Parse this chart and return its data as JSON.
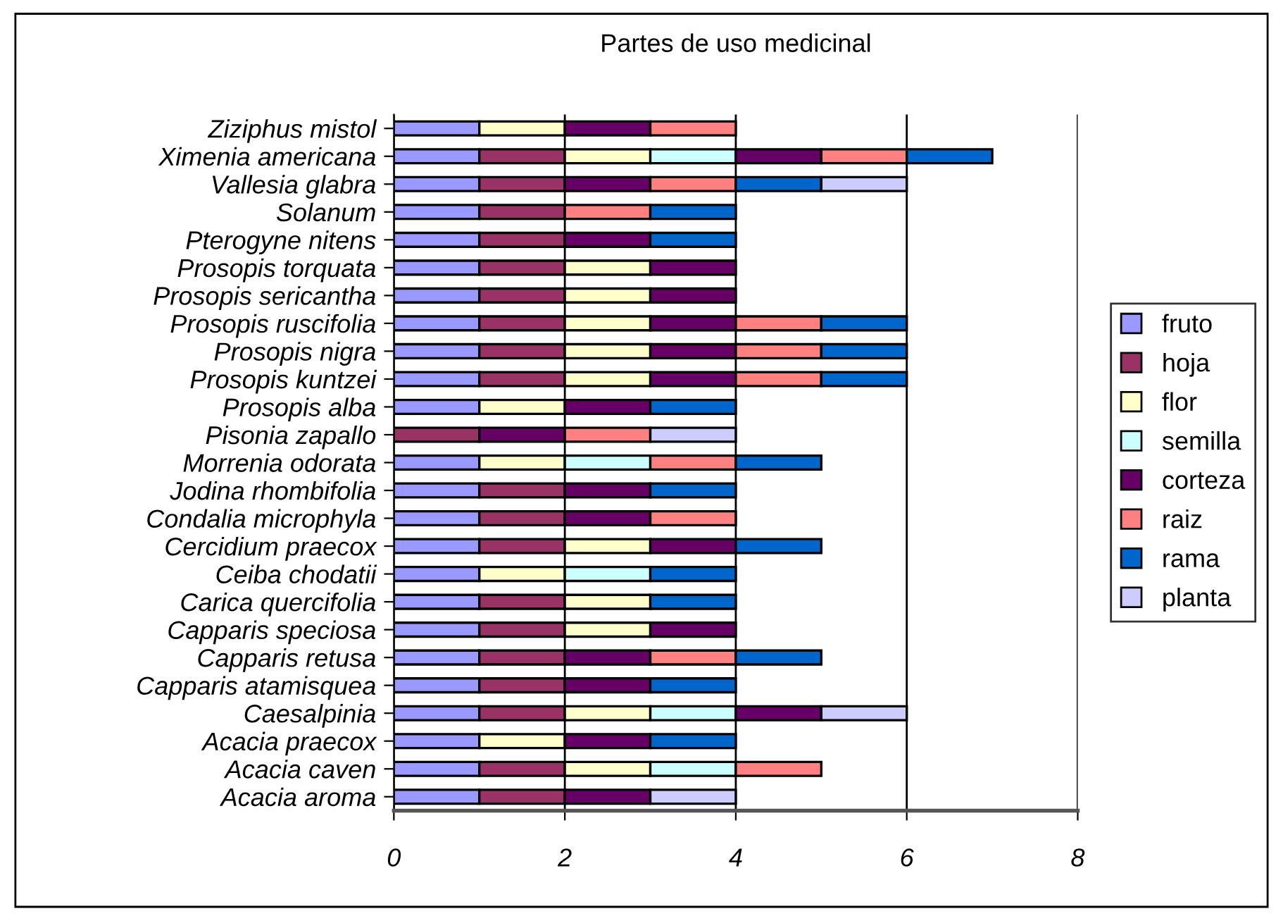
{
  "chart_data": {
    "type": "bar",
    "orientation": "horizontal",
    "stacked": true,
    "title": "Partes de uso medicinal",
    "categories": [
      "Ziziphus mistol",
      "Ximenia americana",
      "Vallesia glabra",
      "Solanum",
      "Pterogyne nitens",
      "Prosopis torquata",
      "Prosopis sericantha",
      "Prosopis ruscifolia",
      "Prosopis nigra",
      "Prosopis kuntzei",
      "Prosopis alba",
      "Pisonia zapallo",
      "Morrenia odorata",
      "Jodina rhombifolia",
      "Condalia microphyla",
      "Cercidium praecox",
      "Ceiba chodatii",
      "Carica quercifolia",
      "Capparis speciosa",
      "Capparis retusa",
      "Capparis atamisquea",
      "Caesalpinia",
      "Acacia praecox",
      "Acacia caven",
      "Acacia aroma"
    ],
    "series": [
      {
        "name": "fruto",
        "color": "#9999ff",
        "values": [
          1,
          1,
          1,
          1,
          1,
          1,
          1,
          1,
          1,
          1,
          1,
          null,
          1,
          1,
          1,
          1,
          1,
          1,
          1,
          1,
          1,
          1,
          1,
          1,
          1
        ]
      },
      {
        "name": "hoja",
        "color": "#993366",
        "values": [
          null,
          1,
          1,
          1,
          1,
          1,
          1,
          1,
          1,
          1,
          null,
          1,
          null,
          1,
          1,
          1,
          null,
          1,
          1,
          1,
          1,
          1,
          null,
          1,
          1
        ]
      },
      {
        "name": "flor",
        "color": "#ffffcc",
        "values": [
          1,
          1,
          null,
          null,
          null,
          1,
          1,
          1,
          1,
          1,
          1,
          null,
          1,
          null,
          null,
          1,
          1,
          1,
          1,
          null,
          null,
          1,
          1,
          1,
          null
        ]
      },
      {
        "name": "semilla",
        "color": "#ccffff",
        "values": [
          null,
          1,
          null,
          null,
          null,
          null,
          null,
          null,
          null,
          null,
          null,
          null,
          1,
          null,
          null,
          null,
          1,
          null,
          null,
          null,
          null,
          1,
          null,
          1,
          null
        ]
      },
      {
        "name": "corteza",
        "color": "#660066",
        "values": [
          1,
          1,
          1,
          null,
          1,
          1,
          1,
          1,
          1,
          1,
          1,
          1,
          null,
          1,
          1,
          1,
          null,
          null,
          1,
          1,
          1,
          1,
          1,
          null,
          1
        ]
      },
      {
        "name": "raiz",
        "color": "#ff8080",
        "values": [
          1,
          1,
          1,
          1,
          null,
          null,
          null,
          1,
          1,
          1,
          null,
          1,
          1,
          null,
          1,
          null,
          null,
          null,
          null,
          1,
          null,
          null,
          null,
          1,
          null
        ]
      },
      {
        "name": "rama",
        "color": "#0066cc",
        "values": [
          null,
          1,
          1,
          1,
          1,
          null,
          null,
          1,
          1,
          1,
          1,
          null,
          1,
          1,
          null,
          1,
          1,
          1,
          null,
          1,
          1,
          null,
          1,
          null,
          null
        ]
      },
      {
        "name": "planta",
        "color": "#ccccff",
        "values": [
          null,
          null,
          1,
          null,
          null,
          null,
          null,
          null,
          null,
          null,
          null,
          1,
          null,
          null,
          null,
          null,
          null,
          null,
          null,
          null,
          null,
          1,
          null,
          null,
          1
        ]
      }
    ],
    "xlim": [
      0,
      8
    ],
    "xticks": [
      0,
      2,
      4,
      6,
      8
    ],
    "grid": "x",
    "legend": "right"
  }
}
